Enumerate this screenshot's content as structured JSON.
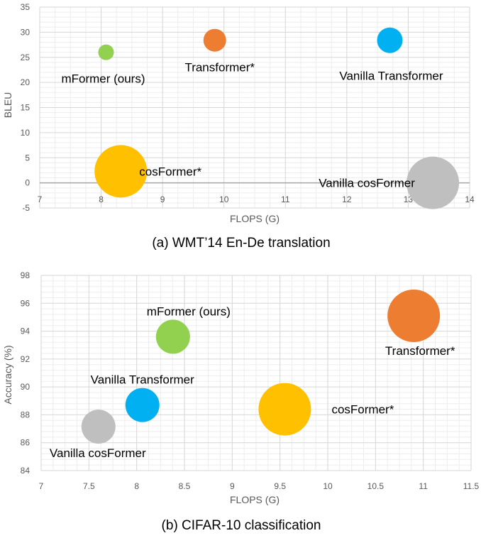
{
  "chart_data": [
    {
      "type": "scatter",
      "caption": "(a) WMT’14 En-De translation",
      "xlabel": "FLOPS (G)",
      "ylabel": "BLEU",
      "xlim": [
        7,
        14
      ],
      "ylim": [
        -5,
        35
      ],
      "xticks": [
        "7",
        "8",
        "9",
        "10",
        "11",
        "12",
        "13",
        "14"
      ],
      "yticks": [
        "-5",
        "0",
        "5",
        "10",
        "15",
        "20",
        "25",
        "30",
        "35"
      ],
      "grid": true,
      "series": [
        {
          "name": "mFormer (ours)",
          "x": 8.08,
          "y": 26.0,
          "color": "#92D050"
        },
        {
          "name": "Transformer*",
          "x": 9.85,
          "y": 28.4,
          "color": "#ED7D31"
        },
        {
          "name": "Vanilla Transformer",
          "x": 12.7,
          "y": 28.4,
          "color": "#00B0F0"
        },
        {
          "name": "cosFormer*",
          "x": 8.32,
          "y": 2.3,
          "color": "#FFC000"
        },
        {
          "name": "Vanilla cosFormer",
          "x": 13.4,
          "y": 0.0,
          "color": "#BFBFBF"
        }
      ]
    },
    {
      "type": "scatter",
      "caption": "(b) CIFAR-10 classification",
      "xlabel": "FLOPS (G)",
      "ylabel": "Accuracy (%)",
      "xlim": [
        7,
        11.5
      ],
      "ylim": [
        84,
        98
      ],
      "xticks": [
        "7",
        "7.5",
        "8",
        "8.5",
        "9",
        "9.5",
        "10",
        "10.5",
        "11",
        "11.5"
      ],
      "yticks": [
        "84",
        "86",
        "88",
        "90",
        "92",
        "94",
        "96",
        "98"
      ],
      "grid": true,
      "series": [
        {
          "name": "mFormer (ours)",
          "x": 8.38,
          "y": 93.6,
          "color": "#92D050"
        },
        {
          "name": "Transformer*",
          "x": 10.9,
          "y": 95.1,
          "color": "#ED7D31"
        },
        {
          "name": "Vanilla Transformer",
          "x": 8.06,
          "y": 88.7,
          "color": "#00B0F0"
        },
        {
          "name": "cosFormer*",
          "x": 9.55,
          "y": 88.4,
          "color": "#FFC000"
        },
        {
          "name": "Vanilla cosFormer",
          "x": 7.6,
          "y": 87.15,
          "color": "#BFBFBF"
        }
      ]
    }
  ]
}
